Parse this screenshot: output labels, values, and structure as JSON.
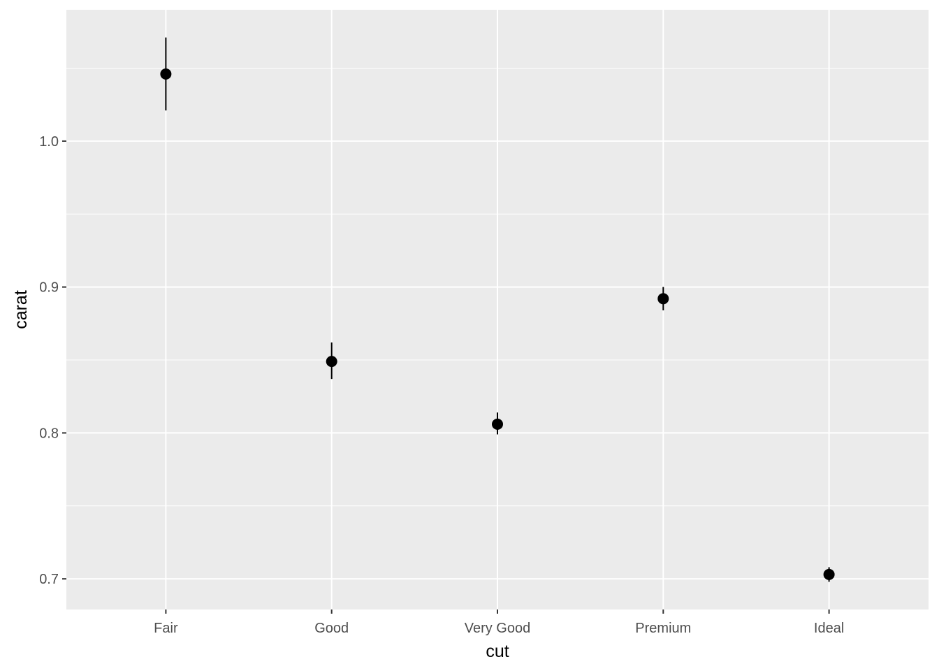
{
  "chart_data": {
    "type": "scatter",
    "title": "",
    "xlabel": "cut",
    "ylabel": "carat",
    "categories": [
      "Fair",
      "Good",
      "Very Good",
      "Premium",
      "Ideal"
    ],
    "points": [
      {
        "category": "Fair",
        "y": 1.046,
        "ymin": 1.021,
        "ymax": 1.071
      },
      {
        "category": "Good",
        "y": 0.849,
        "ymin": 0.837,
        "ymax": 0.862
      },
      {
        "category": "Very Good",
        "y": 0.806,
        "ymin": 0.799,
        "ymax": 0.814
      },
      {
        "category": "Premium",
        "y": 0.892,
        "ymin": 0.884,
        "ymax": 0.9
      },
      {
        "category": "Ideal",
        "y": 0.703,
        "ymin": 0.698,
        "ymax": 0.708
      }
    ],
    "y_ticks": [
      0.7,
      0.8,
      0.9,
      1.0
    ],
    "y_tick_labels": [
      "0.7",
      "0.8",
      "0.9",
      "1.0"
    ],
    "ylim": [
      0.679,
      1.09
    ],
    "grid": true,
    "legend": "none",
    "colors": {
      "panel_background": "#ebebeb",
      "grid_major": "#ffffff",
      "point": "#000000",
      "tick_text": "#4d4d4d"
    }
  }
}
